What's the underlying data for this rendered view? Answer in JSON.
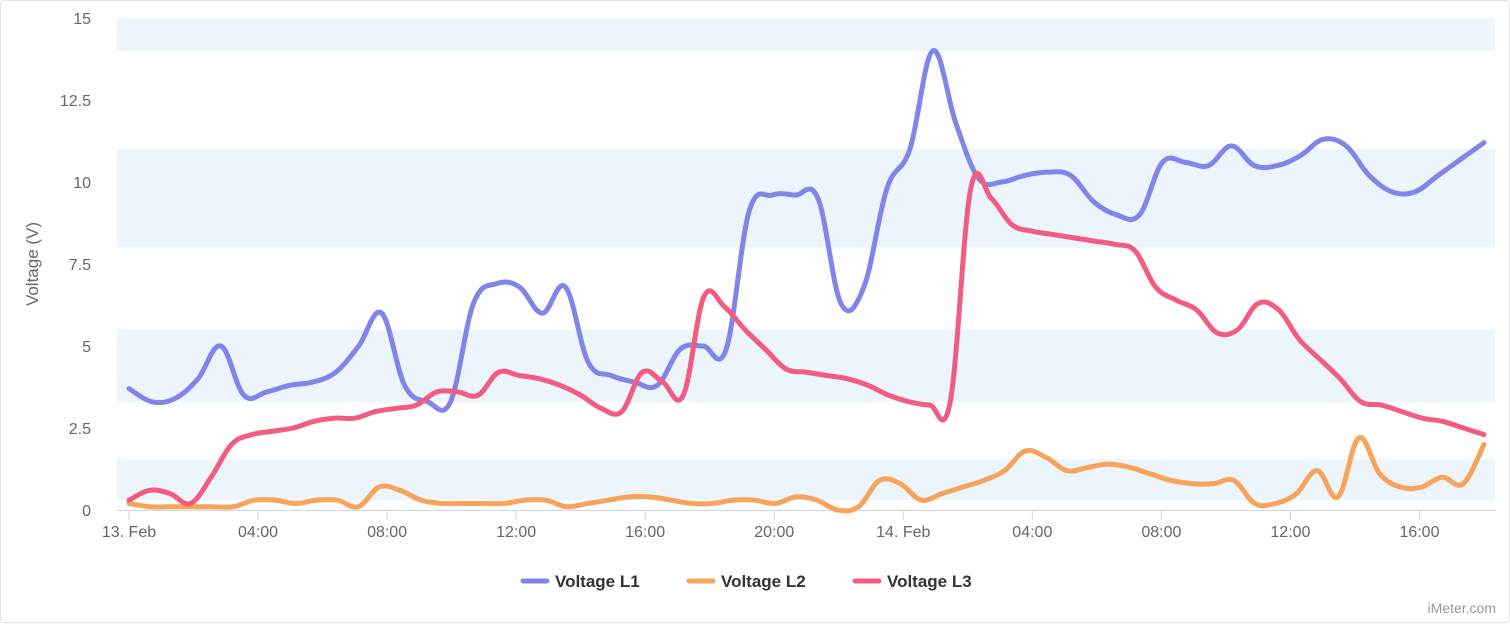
{
  "chart_data": {
    "type": "line",
    "ylabel": "Voltage (V)",
    "ylim": [
      0,
      15
    ],
    "yticks": [
      "0",
      "2.5",
      "5",
      "7.5",
      "10",
      "12.5",
      "15"
    ],
    "x_range_hours": [
      0,
      42
    ],
    "x_labels": [
      {
        "label": "13. Feb",
        "hour": 0
      },
      {
        "label": "04:00",
        "hour": 4
      },
      {
        "label": "08:00",
        "hour": 8
      },
      {
        "label": "12:00",
        "hour": 12
      },
      {
        "label": "16:00",
        "hour": 16
      },
      {
        "label": "20:00",
        "hour": 20
      },
      {
        "label": "14. Feb",
        "hour": 24
      },
      {
        "label": "04:00",
        "hour": 28
      },
      {
        "label": "08:00",
        "hour": 32
      },
      {
        "label": "12:00",
        "hour": 36
      },
      {
        "label": "16:00",
        "hour": 40
      }
    ],
    "bands": [
      [
        0.3,
        1.55
      ],
      [
        3.3,
        5.5
      ],
      [
        8.0,
        11.0
      ],
      [
        14.0,
        15.0
      ]
    ],
    "band_color": "#ecf5fb",
    "legend_position": "bottom-center",
    "series": [
      {
        "name": "Voltage L1",
        "color": "#8085e9",
        "values": [
          3.7,
          3.3,
          3.4,
          4.0,
          5.0,
          3.5,
          3.6,
          3.8,
          3.9,
          4.2,
          5.0,
          6.0,
          3.8,
          3.3,
          3.3,
          6.3,
          6.9,
          6.8,
          6.0,
          6.8,
          4.5,
          4.1,
          3.9,
          3.8,
          4.9,
          5.0,
          4.9,
          9.1,
          9.6,
          9.6,
          9.5,
          6.3,
          6.8,
          9.8,
          11.0,
          14.0,
          11.8,
          10.1,
          10.0,
          10.2,
          10.3,
          10.2,
          9.4,
          9.0,
          9.0,
          10.6,
          10.6,
          10.5,
          11.1,
          10.5,
          10.5,
          10.8,
          11.3,
          11.1,
          10.2,
          9.7,
          9.7,
          10.2,
          10.7,
          11.2
        ]
      },
      {
        "name": "Voltage L2",
        "color": "#f7a35c",
        "values": [
          0.2,
          0.1,
          0.1,
          0.1,
          0.1,
          0.1,
          0.3,
          0.3,
          0.2,
          0.3,
          0.3,
          0.1,
          0.7,
          0.6,
          0.3,
          0.2,
          0.2,
          0.2,
          0.2,
          0.3,
          0.3,
          0.1,
          0.2,
          0.3,
          0.4,
          0.4,
          0.3,
          0.2,
          0.2,
          0.3,
          0.3,
          0.2,
          0.4,
          0.3,
          0.0,
          0.1,
          0.9,
          0.8,
          0.3,
          0.5,
          0.7,
          0.9,
          1.2,
          1.8,
          1.6,
          1.2,
          1.3,
          1.4,
          1.3,
          1.1,
          0.9,
          0.8,
          0.8,
          0.9,
          0.2,
          0.2,
          0.5,
          1.2,
          0.4,
          2.2,
          1.1,
          0.7,
          0.7,
          1.0,
          0.8,
          2.0
        ]
      },
      {
        "name": "Voltage L3",
        "color": "#f15c80",
        "values": [
          0.3,
          0.6,
          0.5,
          0.2,
          1.0,
          2.0,
          2.3,
          2.4,
          2.5,
          2.7,
          2.8,
          2.8,
          3.0,
          3.1,
          3.2,
          3.6,
          3.6,
          3.5,
          4.2,
          4.1,
          4.0,
          3.8,
          3.5,
          3.1,
          3.0,
          4.2,
          3.9,
          3.5,
          6.5,
          6.2,
          5.5,
          4.9,
          4.3,
          4.2,
          4.1,
          4.0,
          3.8,
          3.5,
          3.3,
          3.2,
          3.3,
          9.8,
          9.5,
          8.7,
          8.5,
          8.4,
          8.3,
          8.2,
          8.1,
          7.9,
          6.8,
          6.4,
          6.1,
          5.4,
          5.5,
          6.3,
          6.1,
          5.2,
          4.6,
          4.0,
          3.3,
          3.2,
          3.0,
          2.8,
          2.7,
          2.5,
          2.3
        ]
      }
    ]
  },
  "credit": "iMeter.com"
}
